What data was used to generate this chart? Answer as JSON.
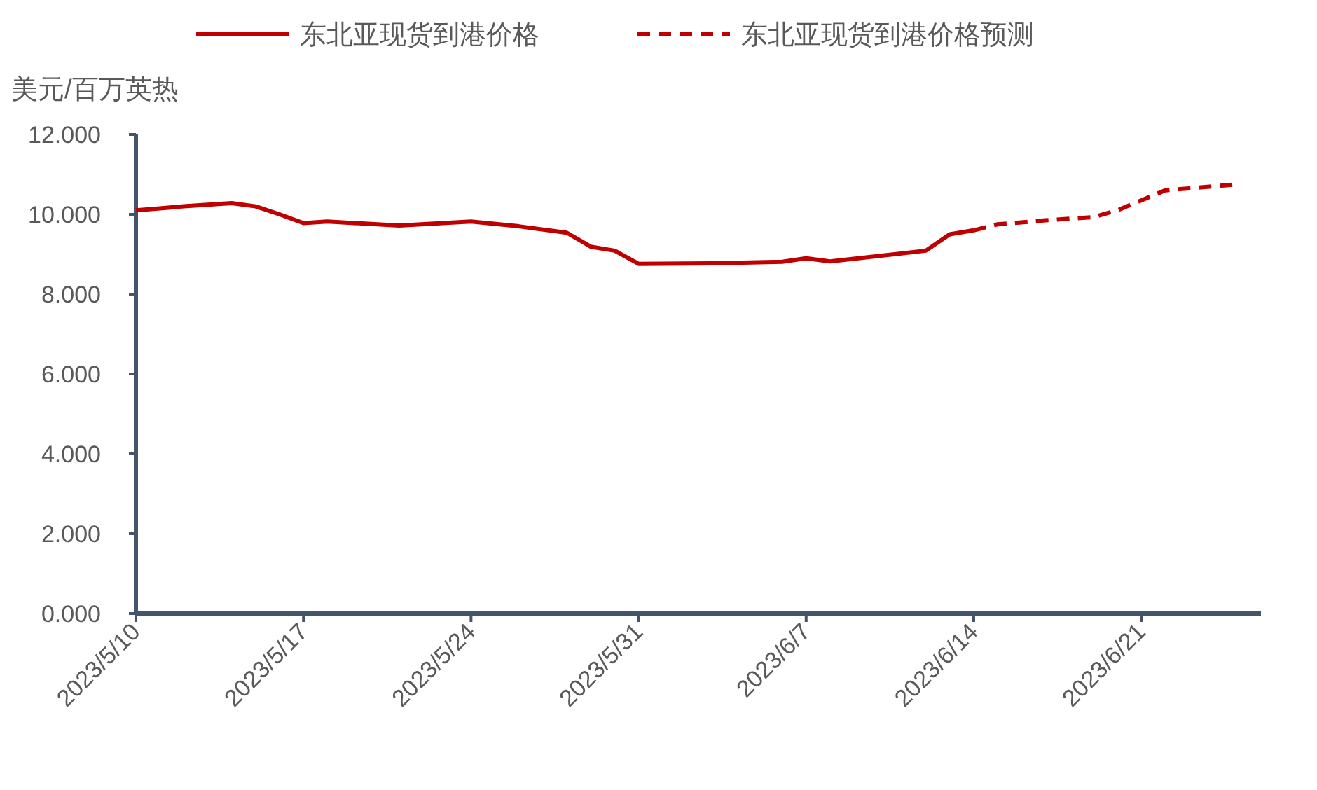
{
  "chart_data": {
    "type": "line",
    "ylabel": "美元/百万英热",
    "legend": "top",
    "xlim": [
      "2023-05-10",
      "2023-06-26"
    ],
    "xticks": [
      {
        "value": "2023-05-10",
        "label": "2023/5/10"
      },
      {
        "value": "2023-05-17",
        "label": "2023/5/17"
      },
      {
        "value": "2023-05-24",
        "label": "2023/5/24"
      },
      {
        "value": "2023-05-31",
        "label": "2023/5/31"
      },
      {
        "value": "2023-06-07",
        "label": "2023/6/7"
      },
      {
        "value": "2023-06-14",
        "label": "2023/6/14"
      },
      {
        "value": "2023-06-21",
        "label": "2023/6/21"
      }
    ],
    "ylim": [
      0,
      12
    ],
    "yticks": [
      {
        "value": 0,
        "label": "0.000"
      },
      {
        "value": 2,
        "label": "2.000"
      },
      {
        "value": 4,
        "label": "4.000"
      },
      {
        "value": 6,
        "label": "6.000"
      },
      {
        "value": 8,
        "label": "8.000"
      },
      {
        "value": 10,
        "label": "10.000"
      },
      {
        "value": 12,
        "label": "12.000"
      }
    ],
    "series": [
      {
        "name": "东北亚现货到港价格",
        "color": "#c00000",
        "line_style": "solid",
        "x": [
          "2023-05-10",
          "2023-05-11",
          "2023-05-12",
          "2023-05-14",
          "2023-05-15",
          "2023-05-16",
          "2023-05-17",
          "2023-05-18",
          "2023-05-21",
          "2023-05-24",
          "2023-05-26",
          "2023-05-28",
          "2023-05-29",
          "2023-05-30",
          "2023-05-31",
          "2023-06-03",
          "2023-06-06",
          "2023-06-07",
          "2023-06-08",
          "2023-06-12",
          "2023-06-13",
          "2023-06-14"
        ],
        "values": [
          10.1,
          10.15,
          10.2,
          10.28,
          10.2,
          10.0,
          9.78,
          9.82,
          9.72,
          9.82,
          9.7,
          9.54,
          9.19,
          9.09,
          8.76,
          8.77,
          8.81,
          8.9,
          8.82,
          9.09,
          9.5,
          9.6
        ]
      },
      {
        "name": "东北亚现货到港价格预测",
        "color": "#c00000",
        "line_style": "dashed",
        "x": [
          "2023-06-14",
          "2023-06-15",
          "2023-06-17",
          "2023-06-19",
          "2023-06-20",
          "2023-06-22",
          "2023-06-23",
          "2023-06-25"
        ],
        "values": [
          9.6,
          9.75,
          9.85,
          9.93,
          10.1,
          10.6,
          10.65,
          10.75
        ]
      }
    ]
  }
}
